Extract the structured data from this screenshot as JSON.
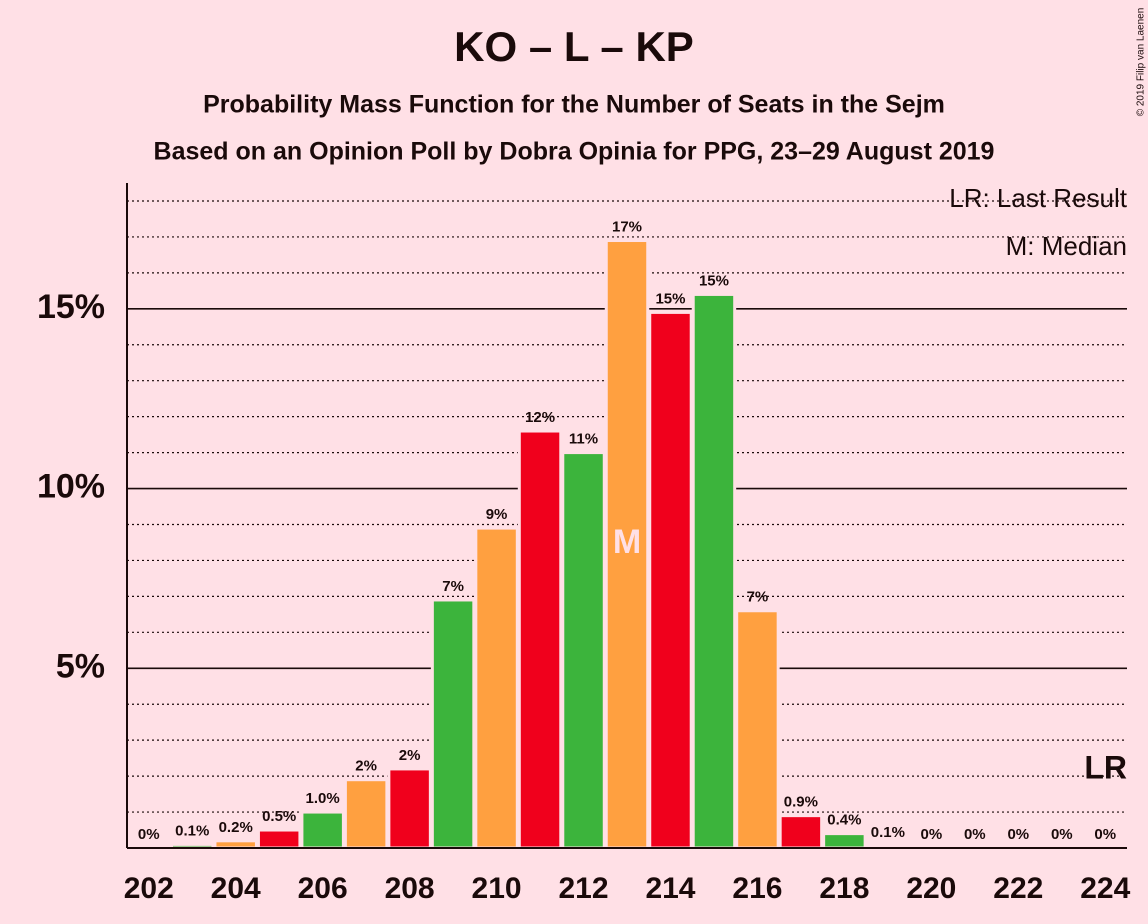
{
  "chart_data": {
    "type": "bar",
    "title": "KO – L – KP",
    "subtitle": "Probability Mass Function for the Number of Seats in the Sejm",
    "subtitle2": "Based on an Opinion Poll by Dobra Opinia for PPG, 23–29 August 2019",
    "copyright": "© 2019 Filip van Laenen",
    "x": [
      202,
      203,
      204,
      205,
      206,
      207,
      208,
      209,
      210,
      211,
      212,
      213,
      214,
      215,
      216,
      217,
      218,
      219,
      220,
      221,
      222,
      223,
      224
    ],
    "values": [
      0,
      0.1,
      0.2,
      0.5,
      1.0,
      1.9,
      2.2,
      6.9,
      8.9,
      11.6,
      11.0,
      16.9,
      14.9,
      15.4,
      6.6,
      0.9,
      0.4,
      0.06,
      0,
      0,
      0,
      0,
      0
    ],
    "value_labels": [
      "0%",
      "0.1%",
      "0.2%",
      "0.5%",
      "1.0%",
      "2%",
      "2%",
      "7%",
      "9%",
      "12%",
      "11%",
      "17%",
      "15%",
      "15%",
      "7%",
      "0.9%",
      "0.4%",
      "0.1%",
      "0%",
      "0%",
      "0%",
      "0%",
      "0%"
    ],
    "colors": [
      "#f0001c",
      "#3cb43c",
      "#ffa040",
      "#f0001c",
      "#3cb43c",
      "#ffa040",
      "#f0001c",
      "#3cb43c",
      "#ffa040",
      "#f0001c",
      "#3cb43c",
      "#ffa040",
      "#f0001c",
      "#3cb43c",
      "#ffa040",
      "#f0001c",
      "#3cb43c",
      "#ffa040",
      "#f0001c",
      "#3cb43c",
      "#ffa040",
      "#f0001c",
      "#3cb43c"
    ],
    "xlim": [
      201.5,
      224.5
    ],
    "xticks": [
      202,
      204,
      206,
      208,
      210,
      212,
      214,
      216,
      218,
      220,
      222,
      224
    ],
    "ylim": [
      0,
      18.5
    ],
    "yticks": [
      {
        "value": 5,
        "label": "5%"
      },
      {
        "value": 10,
        "label": "10%"
      },
      {
        "value": 15,
        "label": "15%"
      }
    ],
    "minor_yticks": [
      1,
      2,
      3,
      4,
      6,
      7,
      8,
      9,
      11,
      12,
      13,
      14,
      16,
      17,
      18
    ],
    "grid": true,
    "median": 213,
    "median_label": "M",
    "last_result": 224,
    "last_result_label": "LR",
    "legend": [
      "LR: Last Result",
      "M: Median"
    ]
  }
}
